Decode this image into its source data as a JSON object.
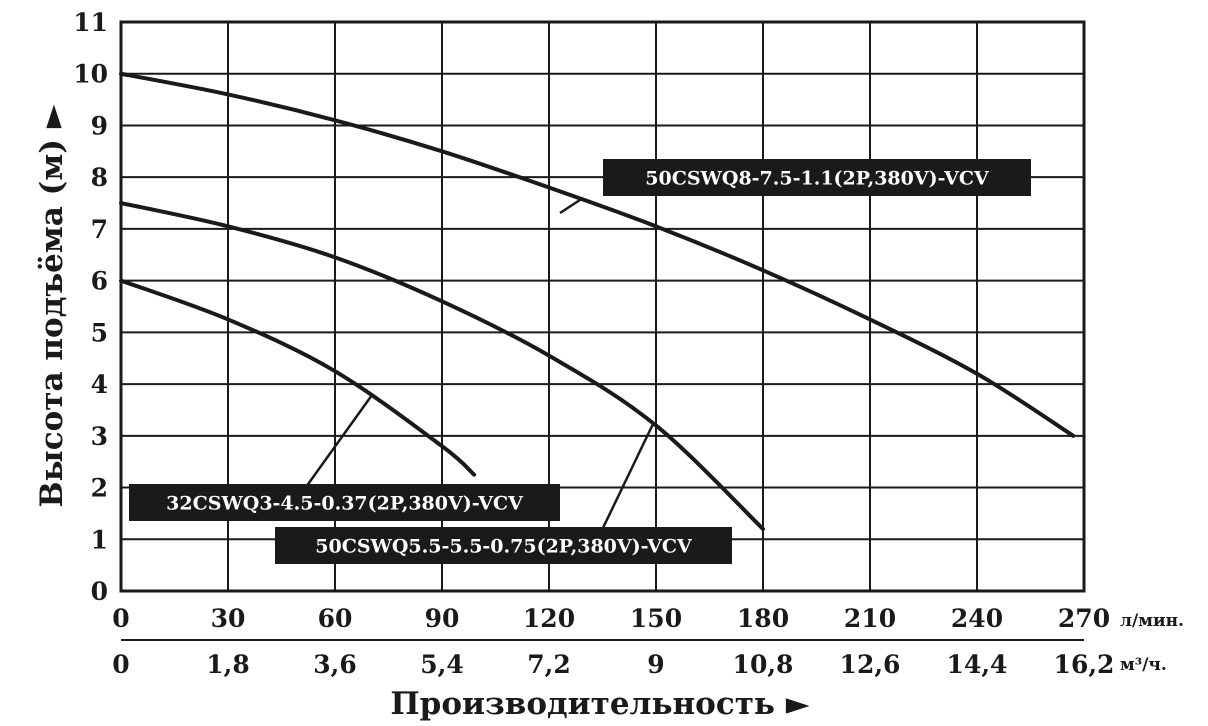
{
  "chart_data": {
    "type": "line",
    "xlabel": "Производительность ►",
    "ylabel": "Высота подъёма (м) ►",
    "x_unit_primary": "л/мин.",
    "x_unit_secondary": "м³/ч.",
    "xlim": [
      0,
      270
    ],
    "ylim": [
      0,
      11
    ],
    "grid": true,
    "x_ticks_primary": [
      "0",
      "30",
      "60",
      "90",
      "120",
      "150",
      "180",
      "210",
      "240",
      "270"
    ],
    "x_ticks_secondary": [
      "0",
      "1,8",
      "3,6",
      "5,4",
      "7,2",
      "9",
      "10,8",
      "12,6",
      "14,4",
      "16,2"
    ],
    "y_ticks": [
      "0",
      "1",
      "2",
      "3",
      "4",
      "5",
      "6",
      "7",
      "8",
      "9",
      "10",
      "11"
    ],
    "series": [
      {
        "name": "50CSWQ8-7.5-1.1(2P,380V)-VCV",
        "x": [
          0,
          30,
          60,
          90,
          120,
          150,
          180,
          210,
          240,
          267
        ],
        "y": [
          10,
          9.6,
          9.1,
          8.5,
          7.8,
          7.05,
          6.2,
          5.25,
          4.2,
          3.0
        ]
      },
      {
        "name": "50CSWQ5.5-5.5-0.75(2P,380V)-VCV",
        "x": [
          0,
          30,
          60,
          90,
          120,
          150,
          180
        ],
        "y": [
          7.5,
          7.05,
          6.45,
          5.6,
          4.55,
          3.2,
          1.2
        ]
      },
      {
        "name": "32CSWQ3-4.5-0.37(2P,380V)-VCV",
        "x": [
          0,
          30,
          60,
          90,
          99
        ],
        "y": [
          6.0,
          5.25,
          4.25,
          2.8,
          2.25
        ]
      }
    ]
  }
}
